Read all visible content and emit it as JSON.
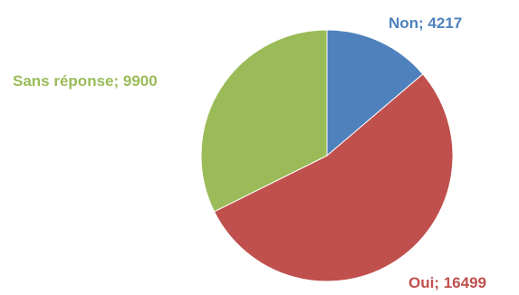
{
  "chart_data": {
    "type": "pie",
    "slices": [
      {
        "label": "Non",
        "value": 4217,
        "display": "Non; 4217",
        "color": "#4f81bd"
      },
      {
        "label": "Oui",
        "value": 16499,
        "display": "Oui; 16499",
        "color": "#c0504d"
      },
      {
        "label": "Sans réponse",
        "value": 9900,
        "display": "Sans réponse; 9900",
        "color": "#9bbb59"
      }
    ],
    "start_angle_deg": 0,
    "direction": "clockwise",
    "legend": "none"
  }
}
